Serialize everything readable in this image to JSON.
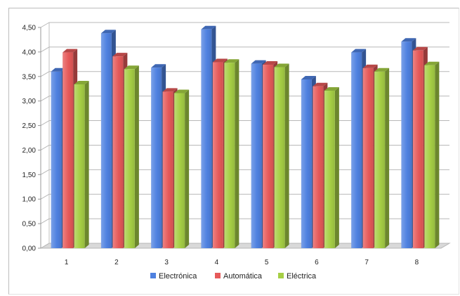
{
  "chart_data": {
    "type": "bar",
    "categories": [
      "1",
      "2",
      "3",
      "4",
      "5",
      "6",
      "7",
      "8"
    ],
    "series": [
      {
        "name": "Electrónica",
        "values": [
          3.6,
          4.38,
          3.68,
          4.46,
          3.76,
          3.44,
          3.99,
          4.21
        ],
        "color": "#4f81e0"
      },
      {
        "name": "Automática",
        "values": [
          3.99,
          3.91,
          3.19,
          3.79,
          3.74,
          3.3,
          3.67,
          4.03
        ],
        "color": "#e65a5a"
      },
      {
        "name": "Eléctrica",
        "values": [
          3.34,
          3.65,
          3.16,
          3.78,
          3.69,
          3.21,
          3.6,
          3.73
        ],
        "color": "#a6cf45"
      }
    ],
    "y_ticks": [
      "0,00",
      "0,50",
      "1,00",
      "1,50",
      "2,00",
      "2,50",
      "3,00",
      "3,50",
      "4,00",
      "4,50"
    ],
    "ylim": [
      0,
      4.5
    ],
    "grid": true,
    "legend_position": "bottom",
    "style": "3d-clustered-column"
  }
}
